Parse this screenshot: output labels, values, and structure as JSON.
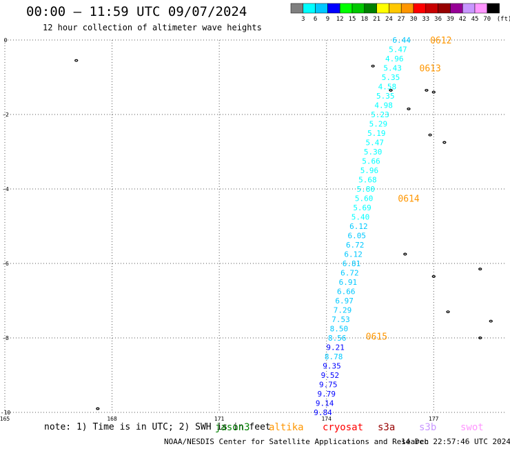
{
  "header": {
    "title": "00:00 – 11:59 UTC 09/07/2024",
    "subtitle": "12 hour collection of altimeter wave heights"
  },
  "colorbar": {
    "labels": [
      "3",
      "6",
      "9",
      "12",
      "15",
      "18",
      "21",
      "24",
      "27",
      "30",
      "33",
      "36",
      "39",
      "42",
      "45",
      "70"
    ],
    "colors": [
      "#7f7f7f",
      "#00ffff",
      "#00c8ff",
      "#0000ff",
      "#00ff00",
      "#00c800",
      "#008000",
      "#ffff00",
      "#ffc800",
      "#ff9600",
      "#ff0000",
      "#c80000",
      "#960000",
      "#960096",
      "#c896ff",
      "#ff96ff",
      "#000000"
    ],
    "unit": "(ft)"
  },
  "footer": {
    "note": "note:  1) Time is in UTC; 2) SWH is in feet",
    "credit": "NOAA/NESDIS Center for Satellite Applications and Research",
    "timestamp": "14 Dec 22:57:46 UTC 2024"
  },
  "satellites": [
    {
      "name": "jason3",
      "color": "#008000"
    },
    {
      "name": "altika",
      "color": "#ff9600"
    },
    {
      "name": "cryosat",
      "color": "#ff0000"
    },
    {
      "name": "s3a",
      "color": "#960000"
    },
    {
      "name": "s3b",
      "color": "#c896ff"
    },
    {
      "name": "swot",
      "color": "#ff96ff"
    }
  ],
  "chart_data": {
    "type": "scatter",
    "title": "00:00 – 11:59 UTC 09/07/2024",
    "xlabel": "",
    "ylabel": "",
    "xlim": [
      165,
      179
    ],
    "ylim": [
      -10,
      0
    ],
    "xticks": [
      "165",
      "168",
      "171",
      "174",
      "177"
    ],
    "yticks": [
      "0",
      "-2",
      "-4",
      "-6",
      "-8",
      "-10"
    ],
    "grid": true,
    "time_labels": [
      {
        "text": "0612",
        "x": 176.9,
        "y": 0.0
      },
      {
        "text": "0613",
        "x": 176.6,
        "y": -0.75
      },
      {
        "text": "0614",
        "x": 176.0,
        "y": -4.25
      },
      {
        "text": "0615",
        "x": 175.1,
        "y": -7.95
      }
    ],
    "series": [
      {
        "name": "altika",
        "points": [
          {
            "x": 176.1,
            "y": 0.0,
            "v": "6.44"
          },
          {
            "x": 176.0,
            "y": -0.25,
            "v": "5.47"
          },
          {
            "x": 175.9,
            "y": -0.5,
            "v": "4.96"
          },
          {
            "x": 175.85,
            "y": -0.75,
            "v": "5.43"
          },
          {
            "x": 175.8,
            "y": -1.0,
            "v": "5.35"
          },
          {
            "x": 175.7,
            "y": -1.25,
            "v": "4.58"
          },
          {
            "x": 175.65,
            "y": -1.5,
            "v": "5.35"
          },
          {
            "x": 175.6,
            "y": -1.75,
            "v": "4.98"
          },
          {
            "x": 175.5,
            "y": -2.0,
            "v": "5.23"
          },
          {
            "x": 175.45,
            "y": -2.25,
            "v": "5.29"
          },
          {
            "x": 175.4,
            "y": -2.5,
            "v": "5.19"
          },
          {
            "x": 175.35,
            "y": -2.75,
            "v": "5.47"
          },
          {
            "x": 175.3,
            "y": -3.0,
            "v": "5.30"
          },
          {
            "x": 175.25,
            "y": -3.25,
            "v": "5.66"
          },
          {
            "x": 175.2,
            "y": -3.5,
            "v": "5.96"
          },
          {
            "x": 175.15,
            "y": -3.75,
            "v": "5.68"
          },
          {
            "x": 175.1,
            "y": -4.0,
            "v": "5.80"
          },
          {
            "x": 175.05,
            "y": -4.25,
            "v": "5.60"
          },
          {
            "x": 175.0,
            "y": -4.5,
            "v": "5.69"
          },
          {
            "x": 174.95,
            "y": -4.75,
            "v": "5.40"
          },
          {
            "x": 174.9,
            "y": -5.0,
            "v": "6.12"
          },
          {
            "x": 174.85,
            "y": -5.25,
            "v": "6.05"
          },
          {
            "x": 174.8,
            "y": -5.5,
            "v": "6.72"
          },
          {
            "x": 174.75,
            "y": -5.75,
            "v": "6.12"
          },
          {
            "x": 174.7,
            "y": -6.0,
            "v": "6.81"
          },
          {
            "x": 174.65,
            "y": -6.25,
            "v": "6.72"
          },
          {
            "x": 174.6,
            "y": -6.5,
            "v": "6.91"
          },
          {
            "x": 174.55,
            "y": -6.75,
            "v": "6.66"
          },
          {
            "x": 174.5,
            "y": -7.0,
            "v": "6.97"
          },
          {
            "x": 174.45,
            "y": -7.25,
            "v": "7.29"
          },
          {
            "x": 174.4,
            "y": -7.5,
            "v": "7.53"
          },
          {
            "x": 174.35,
            "y": -7.75,
            "v": "8.50"
          },
          {
            "x": 174.3,
            "y": -8.0,
            "v": "8.56"
          },
          {
            "x": 174.25,
            "y": -8.25,
            "v": "9.21"
          },
          {
            "x": 174.2,
            "y": -8.5,
            "v": "8.78"
          },
          {
            "x": 174.15,
            "y": -8.75,
            "v": "9.35"
          },
          {
            "x": 174.1,
            "y": -9.0,
            "v": "9.52"
          },
          {
            "x": 174.05,
            "y": -9.25,
            "v": "9.75"
          },
          {
            "x": 174.0,
            "y": -9.5,
            "v": "9.79"
          },
          {
            "x": 173.95,
            "y": -9.75,
            "v": "9.14"
          },
          {
            "x": 173.9,
            "y": -10.0,
            "v": "9.84"
          }
        ]
      }
    ],
    "land": [
      {
        "name": "islet-1",
        "x": 167.0,
        "y": -0.55
      },
      {
        "name": "islet-2",
        "x": 175.3,
        "y": -0.7
      },
      {
        "name": "islet-3",
        "x": 175.8,
        "y": -1.35
      },
      {
        "name": "islet-4",
        "x": 176.8,
        "y": -1.35
      },
      {
        "name": "islet-5",
        "x": 177.0,
        "y": -1.4
      },
      {
        "name": "islet-6",
        "x": 176.3,
        "y": -1.85
      },
      {
        "name": "islet-7",
        "x": 176.9,
        "y": -2.55
      },
      {
        "name": "islet-8",
        "x": 177.3,
        "y": -2.75
      },
      {
        "name": "islet-9",
        "x": 176.2,
        "y": -5.75
      },
      {
        "name": "islet-10",
        "x": 178.3,
        "y": -6.15
      },
      {
        "name": "islet-11",
        "x": 177.0,
        "y": -6.35
      },
      {
        "name": "islet-12",
        "x": 177.4,
        "y": -7.3
      },
      {
        "name": "islet-13",
        "x": 178.6,
        "y": -7.55
      },
      {
        "name": "islet-14",
        "x": 178.3,
        "y": -8.0
      },
      {
        "name": "islet-15",
        "x": 167.6,
        "y": -9.9
      }
    ]
  }
}
